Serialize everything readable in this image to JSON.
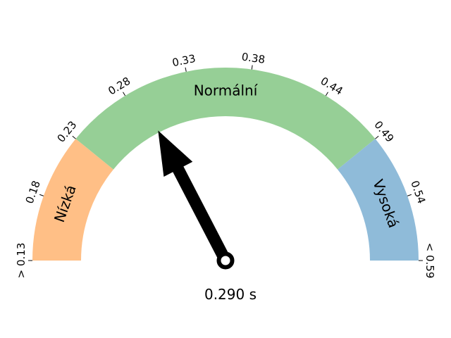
{
  "chart_data": {
    "type": "gauge",
    "title": "",
    "value": 0.29,
    "value_label": "0.290 s",
    "range": [
      0.13,
      0.59
    ],
    "ticks": [
      {
        "value": 0.13,
        "label": "> 0.13"
      },
      {
        "value": 0.18,
        "label": "0.18"
      },
      {
        "value": 0.23,
        "label": "0.23"
      },
      {
        "value": 0.28,
        "label": "0.28"
      },
      {
        "value": 0.33,
        "label": "0.33"
      },
      {
        "value": 0.38,
        "label": "0.38"
      },
      {
        "value": 0.44,
        "label": "0.44"
      },
      {
        "value": 0.49,
        "label": "0.49"
      },
      {
        "value": 0.54,
        "label": "0.54"
      },
      {
        "value": 0.59,
        "label": "< 0.59"
      }
    ],
    "bands": [
      {
        "label": "Nízká",
        "from": 0.13,
        "to": 0.23,
        "color": "#FFBF86"
      },
      {
        "label": "Normální",
        "from": 0.23,
        "to": 0.49,
        "color": "#96CF96"
      },
      {
        "label": "Vysoká",
        "from": 0.49,
        "to": 0.59,
        "color": "#8FBBD9"
      }
    ]
  }
}
